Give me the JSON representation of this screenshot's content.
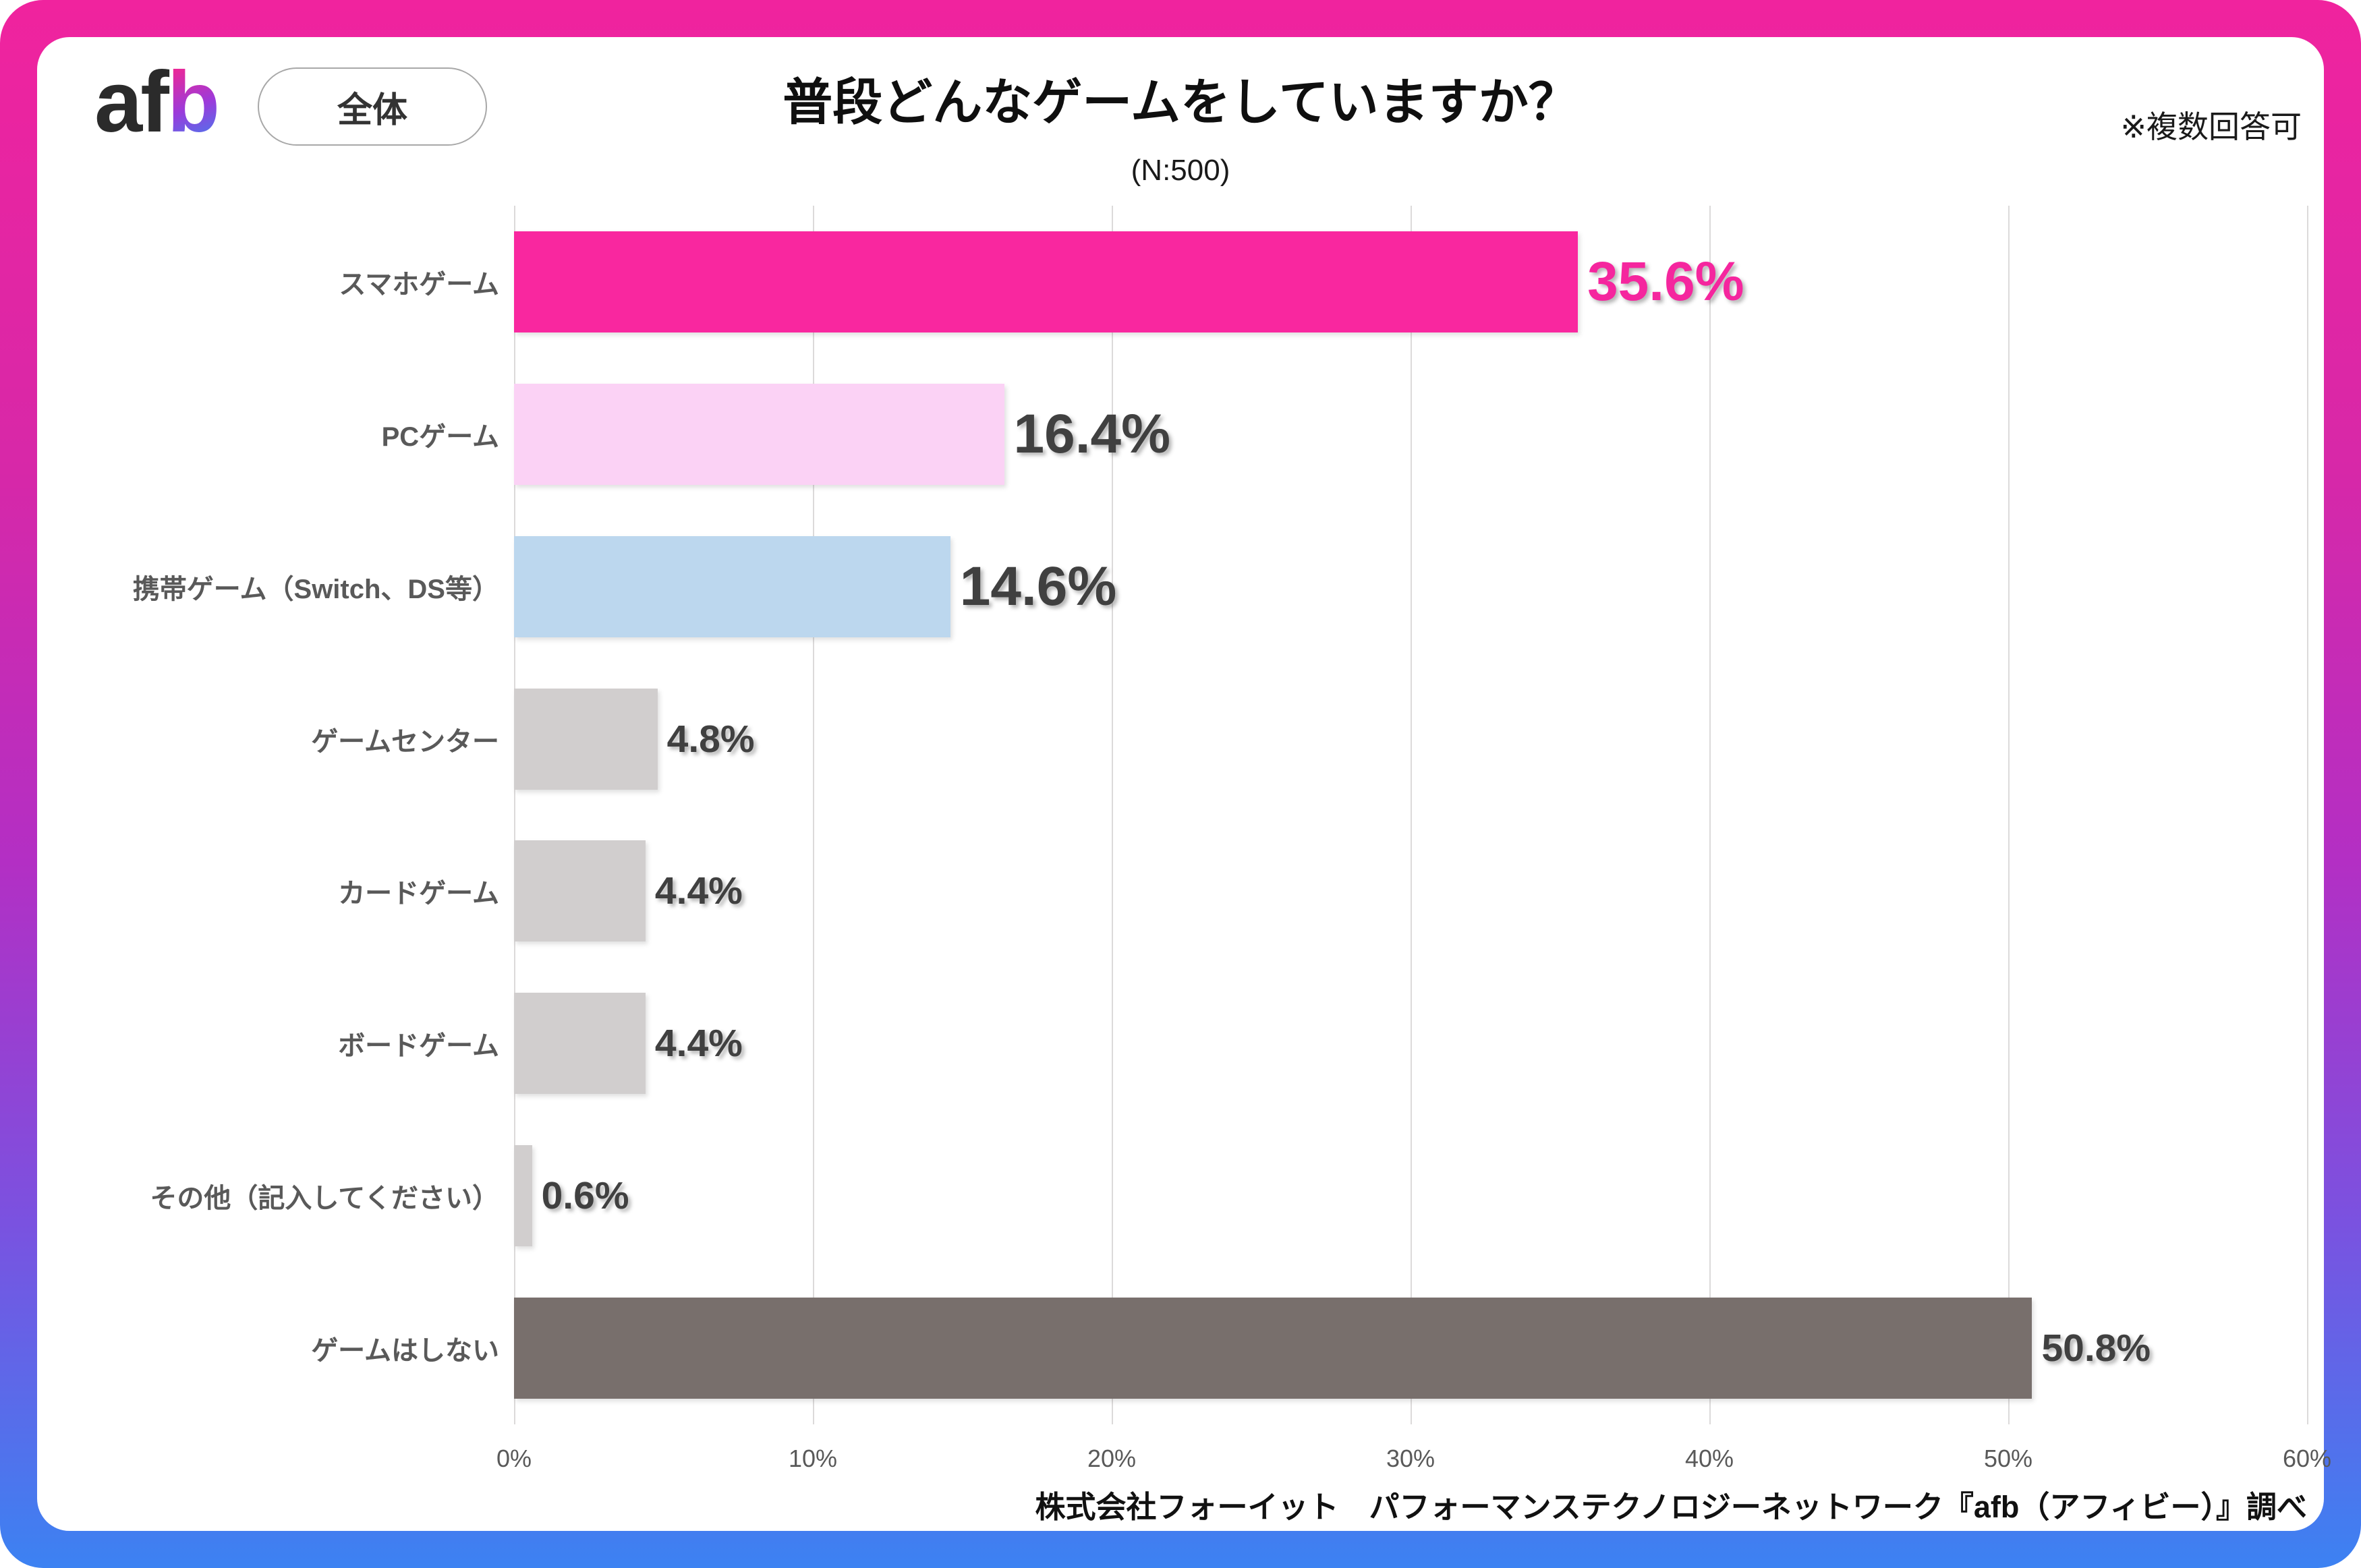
{
  "header": {
    "logo": {
      "part_black": "af",
      "part_gradient": "b"
    },
    "scope_badge_label": "全体",
    "title": "普段どんなゲームをしていますか？",
    "sample_note": "(N:500)",
    "multi_answer_note": "※複数回答可"
  },
  "chart_data": {
    "type": "bar",
    "orientation": "horizontal",
    "title": "普段どんなゲームをしていますか？",
    "sample_size": 500,
    "categories": [
      "スマホゲーム",
      "PCゲーム",
      "携帯ゲーム（Switch、DS等）",
      "ゲームセンター",
      "カードゲーム",
      "ボードゲーム",
      "その他（記入してください）",
      "ゲームはしない"
    ],
    "values": [
      35.6,
      16.4,
      14.6,
      4.8,
      4.4,
      4.4,
      0.6,
      50.8
    ],
    "value_labels": [
      "35.6%",
      "16.4%",
      "14.6%",
      "4.8%",
      "4.4%",
      "4.4%",
      "0.6%",
      "50.8%"
    ],
    "bar_colors": [
      "#F9279F",
      "#FBD2F5",
      "#BCD7EE",
      "#D1CECE",
      "#D1CECE",
      "#D1CECE",
      "#D1CECE",
      "#786F6C"
    ],
    "value_label_colors": [
      "#F5269E",
      "#404040",
      "#404040",
      "#404040",
      "#404040",
      "#404040",
      "#404040",
      "#404040"
    ],
    "value_label_emphasis": [
      "large",
      "large",
      "large",
      "small",
      "small",
      "small",
      "small",
      "small"
    ],
    "x_ticks": [
      "0%",
      "10%",
      "20%",
      "30%",
      "40%",
      "50%",
      "60%"
    ],
    "xlim": [
      0,
      60
    ],
    "grid": true,
    "gridline_color": "#DCDADA",
    "legend": null
  },
  "footer": {
    "source": "株式会社フォーイット　パフォーマンステクノロジーネットワーク『afb（アフィビー）』調べ"
  },
  "colors": {
    "frame_gradient_top": "#F0239E",
    "frame_gradient_mid1": "#B32FC4",
    "frame_gradient_mid2": "#7A52E0",
    "frame_gradient_bottom": "#3C82F2",
    "accent_pink": "#F5269E"
  }
}
